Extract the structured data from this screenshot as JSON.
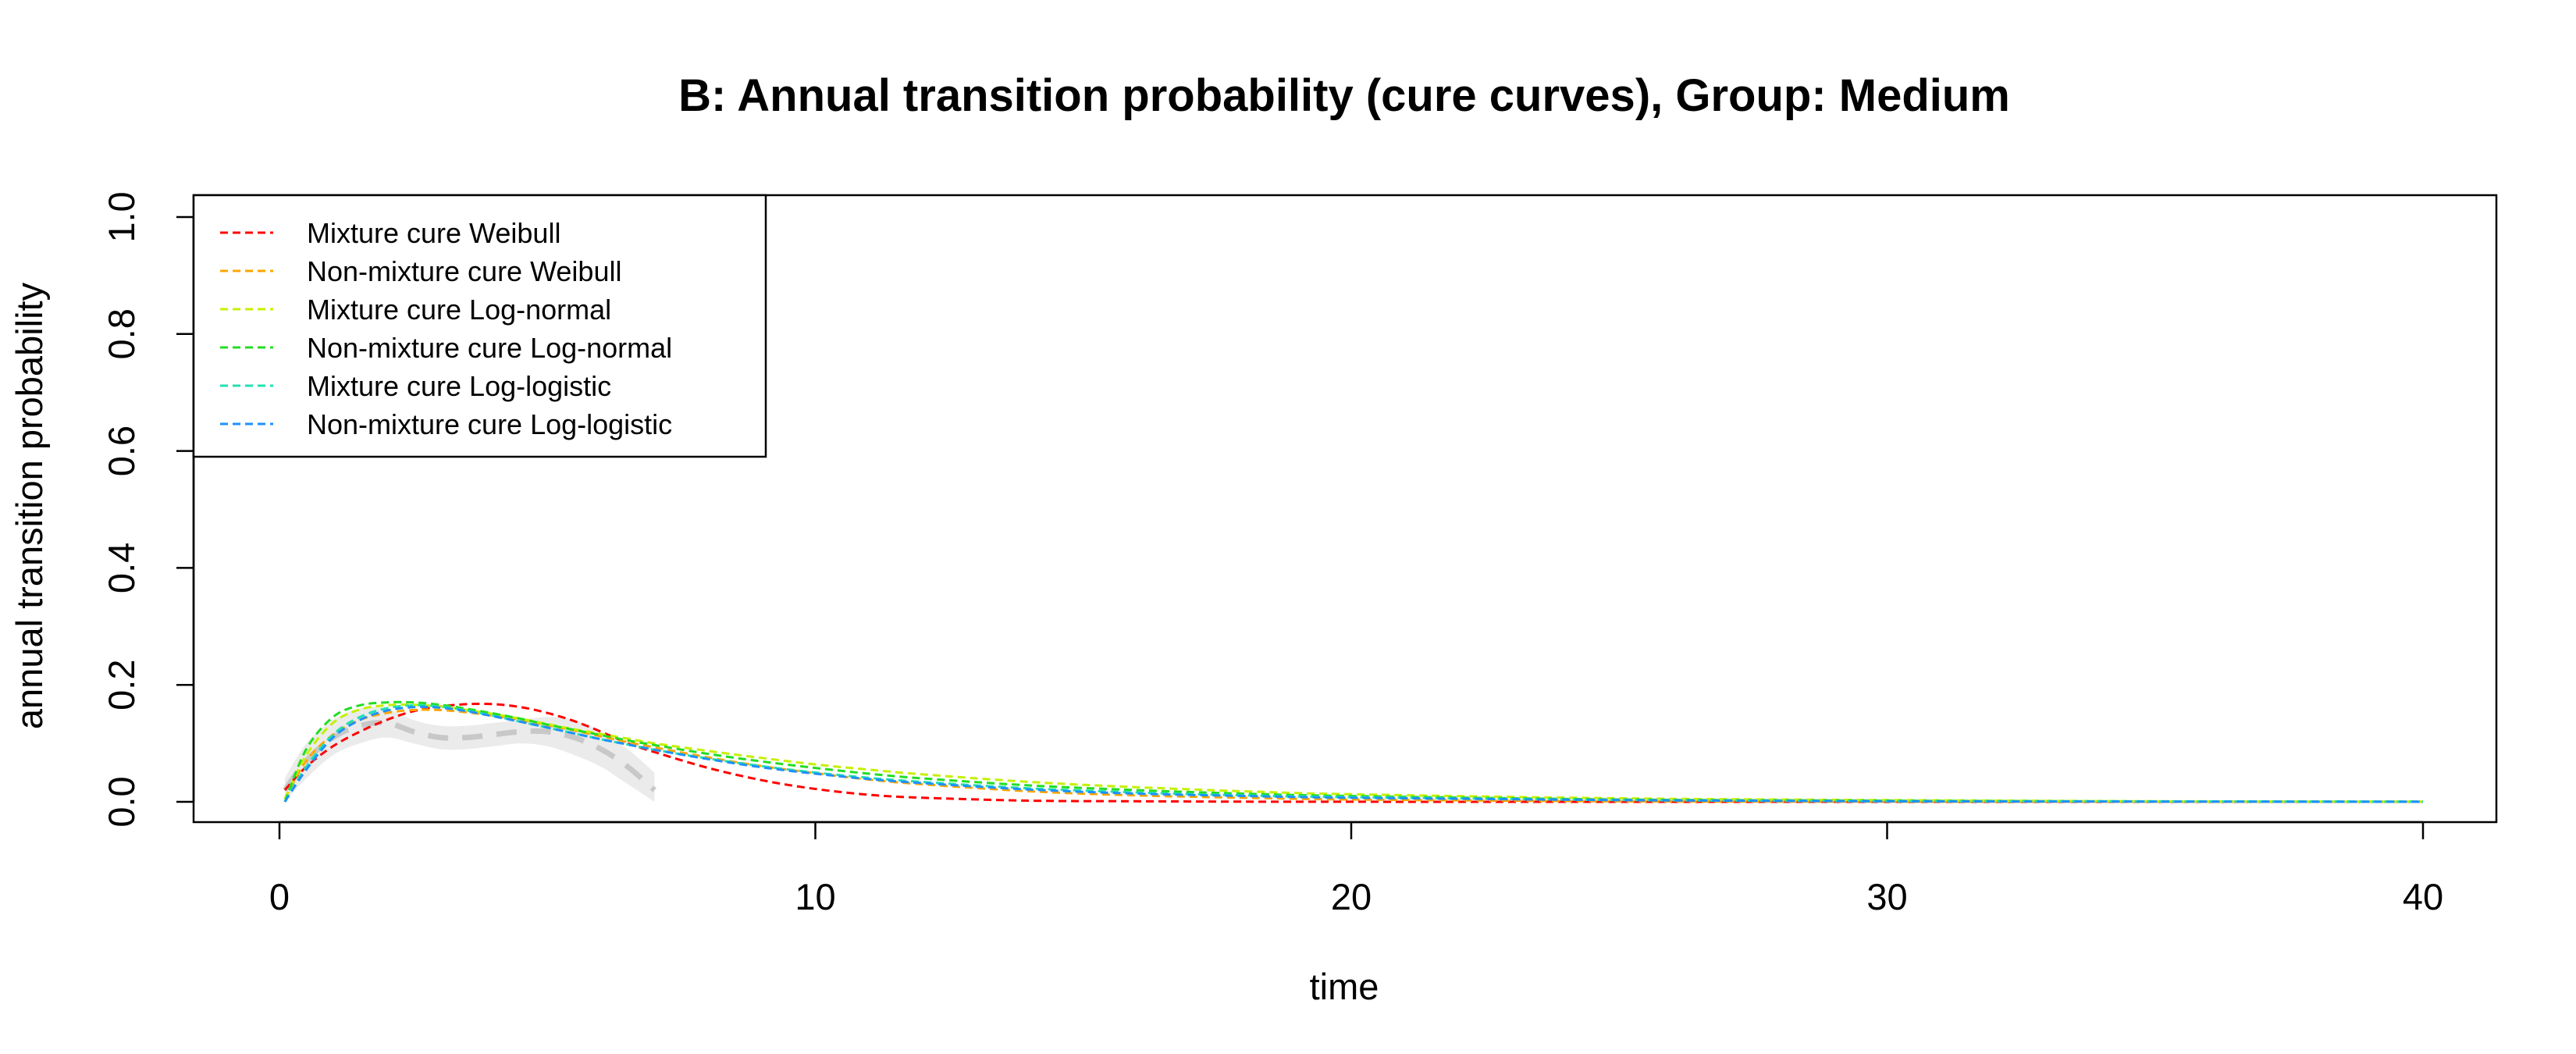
{
  "chart_data": {
    "type": "line",
    "title": "B: Annual transition probability (cure curves), Group: Medium",
    "xlabel": "time",
    "ylabel": "annual transition probability",
    "xlim": [
      0,
      40
    ],
    "ylim": [
      0,
      1
    ],
    "x_ticks": [
      {
        "value": 0,
        "label": "0"
      },
      {
        "value": 10,
        "label": "10"
      },
      {
        "value": 20,
        "label": "20"
      },
      {
        "value": 30,
        "label": "30"
      },
      {
        "value": 40,
        "label": "40"
      }
    ],
    "y_ticks": [
      {
        "value": 0.0,
        "label": "0.0"
      },
      {
        "value": 0.2,
        "label": "0.2"
      },
      {
        "value": 0.4,
        "label": "0.4"
      },
      {
        "value": 0.6,
        "label": "0.6"
      },
      {
        "value": 0.8,
        "label": "0.8"
      },
      {
        "value": 1.0,
        "label": "1.0"
      }
    ],
    "grid": false,
    "legend_position": "top-left",
    "observed": {
      "color": "#c8c8c8",
      "band_color": "#ebebeb",
      "x": [
        0.1,
        0.5,
        1.0,
        1.5,
        2.0,
        2.5,
        3.0,
        3.5,
        4.0,
        4.5,
        5.0,
        5.5,
        6.0,
        6.5,
        7.0
      ],
      "y": [
        0.02,
        0.07,
        0.11,
        0.13,
        0.135,
        0.12,
        0.11,
        0.11,
        0.115,
        0.12,
        0.12,
        0.11,
        0.09,
        0.06,
        0.02
      ],
      "lower": [
        0.0,
        0.04,
        0.08,
        0.1,
        0.11,
        0.1,
        0.09,
        0.09,
        0.095,
        0.1,
        0.095,
        0.08,
        0.06,
        0.03,
        0.0
      ],
      "upper": [
        0.04,
        0.1,
        0.14,
        0.16,
        0.16,
        0.14,
        0.13,
        0.13,
        0.135,
        0.14,
        0.145,
        0.14,
        0.12,
        0.09,
        0.05
      ]
    },
    "series": [
      {
        "name": "Mixture cure Weibull",
        "color": "#ff0000",
        "x": [
          0.1,
          0.5,
          1,
          1.5,
          2,
          2.5,
          3,
          3.5,
          4,
          4.5,
          5,
          5.5,
          6,
          6.5,
          7,
          8,
          9,
          10,
          11,
          12,
          14,
          16,
          18,
          20,
          25,
          30,
          35,
          40
        ],
        "y": [
          0.02,
          0.06,
          0.095,
          0.12,
          0.14,
          0.155,
          0.163,
          0.167,
          0.167,
          0.162,
          0.152,
          0.138,
          0.12,
          0.1,
          0.085,
          0.058,
          0.037,
          0.022,
          0.012,
          0.007,
          0.002,
          0.001,
          0.0003,
          0.0001,
          0.0,
          0.0,
          0.0,
          0.0
        ]
      },
      {
        "name": "Non-mixture cure Weibull",
        "color": "#ffa500",
        "x": [
          0.1,
          0.5,
          1,
          1.5,
          2,
          2.5,
          3,
          3.5,
          4,
          4.5,
          5,
          5.5,
          6,
          6.5,
          7,
          8,
          9,
          10,
          11,
          12,
          14,
          16,
          18,
          20,
          25,
          30,
          35,
          40
        ],
        "y": [
          0.005,
          0.07,
          0.115,
          0.14,
          0.152,
          0.157,
          0.157,
          0.153,
          0.147,
          0.14,
          0.131,
          0.122,
          0.112,
          0.102,
          0.093,
          0.076,
          0.061,
          0.049,
          0.038,
          0.03,
          0.018,
          0.011,
          0.007,
          0.004,
          0.001,
          0.0003,
          0.0001,
          0.0
        ]
      },
      {
        "name": "Mixture cure Log-normal",
        "color": "#c5f000",
        "x": [
          0.1,
          0.5,
          1,
          1.5,
          2,
          2.5,
          3,
          3.5,
          4,
          4.5,
          5,
          5.5,
          6,
          6.5,
          7,
          8,
          9,
          10,
          11,
          12,
          14,
          16,
          18,
          20,
          25,
          30,
          35,
          40
        ],
        "y": [
          0.005,
          0.08,
          0.135,
          0.158,
          0.165,
          0.166,
          0.163,
          0.157,
          0.15,
          0.142,
          0.133,
          0.124,
          0.116,
          0.108,
          0.1,
          0.087,
          0.075,
          0.064,
          0.055,
          0.047,
          0.034,
          0.025,
          0.018,
          0.013,
          0.006,
          0.003,
          0.001,
          0.0005
        ]
      },
      {
        "name": "Non-mixture cure Log-normal",
        "color": "#22dd22",
        "x": [
          0.1,
          0.5,
          1,
          1.5,
          2,
          2.5,
          3,
          3.5,
          4,
          4.5,
          5,
          5.5,
          6,
          6.5,
          7,
          8,
          9,
          10,
          11,
          12,
          14,
          16,
          18,
          20,
          25,
          30,
          35,
          40
        ],
        "y": [
          0.0,
          0.09,
          0.145,
          0.165,
          0.17,
          0.17,
          0.166,
          0.159,
          0.151,
          0.142,
          0.132,
          0.123,
          0.114,
          0.105,
          0.097,
          0.082,
          0.069,
          0.058,
          0.048,
          0.04,
          0.028,
          0.02,
          0.014,
          0.01,
          0.004,
          0.002,
          0.0008,
          0.0003
        ]
      },
      {
        "name": "Mixture cure Log-logistic",
        "color": "#20e0b0",
        "x": [
          0.1,
          0.5,
          1,
          1.5,
          2,
          2.5,
          3,
          3.5,
          4,
          4.5,
          5,
          5.5,
          6,
          6.5,
          7,
          8,
          9,
          10,
          11,
          12,
          14,
          16,
          18,
          20,
          25,
          30,
          35,
          40
        ],
        "y": [
          0.0,
          0.06,
          0.115,
          0.145,
          0.16,
          0.165,
          0.163,
          0.156,
          0.147,
          0.137,
          0.127,
          0.117,
          0.107,
          0.098,
          0.089,
          0.074,
          0.061,
          0.05,
          0.041,
          0.034,
          0.023,
          0.016,
          0.011,
          0.008,
          0.003,
          0.001,
          0.0005,
          0.0002
        ]
      },
      {
        "name": "Non-mixture cure Log-logistic",
        "color": "#1e90ff",
        "x": [
          0.1,
          0.5,
          1,
          1.5,
          2,
          2.5,
          3,
          3.5,
          4,
          4.5,
          5,
          5.5,
          6,
          6.5,
          7,
          8,
          9,
          10,
          11,
          12,
          14,
          16,
          18,
          20,
          25,
          30,
          35,
          40
        ],
        "y": [
          0.0,
          0.055,
          0.11,
          0.14,
          0.156,
          0.162,
          0.161,
          0.155,
          0.146,
          0.137,
          0.127,
          0.117,
          0.107,
          0.098,
          0.089,
          0.073,
          0.059,
          0.048,
          0.039,
          0.032,
          0.021,
          0.014,
          0.01,
          0.007,
          0.003,
          0.001,
          0.0004,
          0.0001
        ]
      }
    ]
  }
}
